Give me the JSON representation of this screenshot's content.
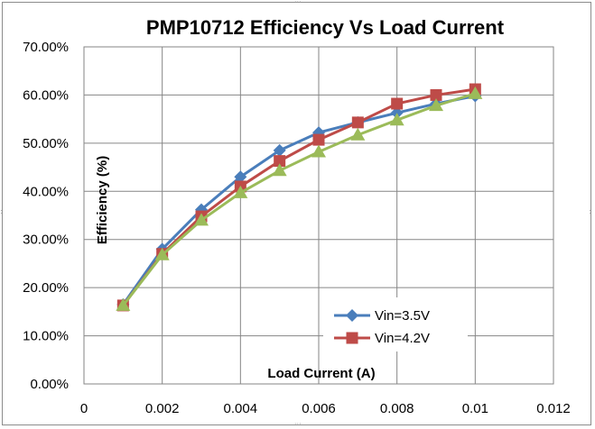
{
  "chart_data": {
    "type": "line",
    "title": "PMP10712  Efficiency Vs Load Current",
    "xlabel": "Load Current (A)",
    "ylabel": "Efficiency  (%)",
    "xlim": [
      0,
      0.012
    ],
    "ylim": [
      0,
      0.7
    ],
    "x_ticks": [
      "0",
      "0.002",
      "0.004",
      "0.006",
      "0.008",
      "0.01",
      "0.012"
    ],
    "y_ticks": [
      "0.00%",
      "10.00%",
      "20.00%",
      "30.00%",
      "40.00%",
      "50.00%",
      "60.00%",
      "70.00%"
    ],
    "grid": true,
    "legend_position": "lower-right",
    "series": [
      {
        "name": "Vin=3.5V",
        "color": "#4a7ebb",
        "marker": "diamond",
        "x": [
          0.001,
          0.002,
          0.003,
          0.004,
          0.005,
          0.006,
          0.007,
          0.008,
          0.009,
          0.01
        ],
        "y": [
          0.165,
          0.28,
          0.362,
          0.43,
          0.485,
          0.522,
          0.543,
          0.563,
          0.582,
          0.598
        ]
      },
      {
        "name": "Vin=4.2V",
        "color": "#be4b48",
        "marker": "square",
        "x": [
          0.001,
          0.002,
          0.003,
          0.004,
          0.005,
          0.006,
          0.007,
          0.008,
          0.009,
          0.01
        ],
        "y": [
          0.163,
          0.27,
          0.348,
          0.41,
          0.463,
          0.507,
          0.543,
          0.582,
          0.6,
          0.612
        ]
      },
      {
        "name": "",
        "color": "#9bbb59",
        "marker": "triangle",
        "x": [
          0.001,
          0.002,
          0.003,
          0.004,
          0.005,
          0.006,
          0.007,
          0.008,
          0.009,
          0.01
        ],
        "y": [
          0.163,
          0.268,
          0.34,
          0.397,
          0.443,
          0.482,
          0.517,
          0.548,
          0.578,
          0.603
        ]
      }
    ]
  }
}
